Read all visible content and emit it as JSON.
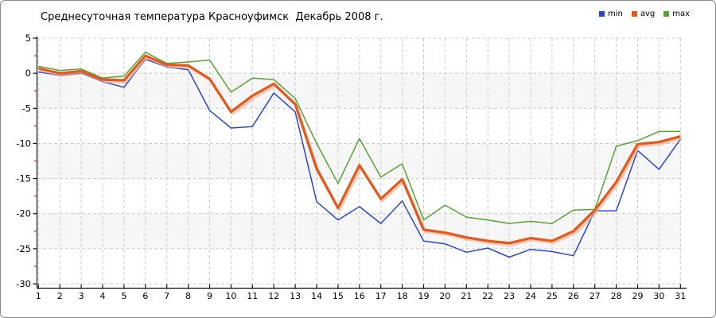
{
  "window": {
    "background": "#ffffff",
    "border_color": "#8a8a8a"
  },
  "title": "Среднесуточная температура Красноуфимск  Декабрь 2008 г.",
  "legend": {
    "position": "top-right",
    "items": [
      {
        "label": "min",
        "color": "#2a46cf"
      },
      {
        "label": "avg",
        "color": "#e05a1e"
      },
      {
        "label": "max",
        "color": "#57a331"
      }
    ]
  },
  "chart_data": {
    "type": "line",
    "title": "Среднесуточная температура Красноуфимск  Декабрь 2008 г.",
    "xlabel": "",
    "ylabel": "",
    "x": [
      1,
      2,
      3,
      4,
      5,
      6,
      7,
      8,
      9,
      10,
      11,
      12,
      13,
      14,
      15,
      16,
      17,
      18,
      19,
      20,
      21,
      22,
      23,
      24,
      25,
      26,
      27,
      28,
      29,
      30,
      31
    ],
    "ylim": [
      -30,
      5
    ],
    "ytick_step": 5,
    "ytick_labels": [
      "5",
      "0",
      "-5",
      "-10",
      "-15",
      "-20",
      "-25",
      "-30"
    ],
    "minor_ytick_step": 2.5,
    "grid": true,
    "grid_style": "dashed",
    "band_rows": [
      [
        0,
        -5
      ],
      [
        -10,
        -15
      ],
      [
        -20,
        -25
      ]
    ],
    "legend_position": "top-right",
    "series": [
      {
        "name": "min",
        "color": "#2a46cf",
        "values": [
          0.2,
          -0.3,
          0.0,
          -1.2,
          -2.0,
          2.0,
          0.9,
          0.5,
          -5.3,
          -7.8,
          -7.6,
          -2.8,
          -5.5,
          -18.3,
          -20.9,
          -19.0,
          -21.4,
          -18.2,
          -23.9,
          -24.3,
          -25.5,
          -24.9,
          -26.2,
          -25.1,
          -25.4,
          -26.0,
          -19.6,
          -19.6,
          -11.0,
          -13.7,
          -9.4
        ]
      },
      {
        "name": "avg",
        "color": "#e05a1e",
        "values": [
          0.7,
          0.0,
          0.3,
          -0.9,
          -1.0,
          2.5,
          1.2,
          1.1,
          -0.8,
          -5.5,
          -3.2,
          -1.5,
          -4.4,
          -13.6,
          -19.2,
          -13.1,
          -17.9,
          -15.1,
          -22.3,
          -22.7,
          -23.4,
          -23.9,
          -24.2,
          -23.5,
          -23.9,
          -22.5,
          -19.5,
          -15.5,
          -10.1,
          -9.8,
          -9.0
        ]
      },
      {
        "name": "max",
        "color": "#57a331",
        "values": [
          1.0,
          0.4,
          0.6,
          -0.7,
          -0.4,
          3.0,
          1.4,
          1.6,
          1.9,
          -2.7,
          -0.7,
          -0.9,
          -3.6,
          -10.0,
          -15.7,
          -9.3,
          -14.8,
          -12.9,
          -20.9,
          -18.8,
          -20.5,
          -20.9,
          -21.4,
          -21.1,
          -21.4,
          -19.5,
          -19.4,
          -10.4,
          -9.6,
          -8.3,
          -8.3
        ]
      }
    ],
    "style": {
      "avg_line_width": 3.2,
      "minmax_line_width": 1.5,
      "avg_shadow_color": "#f3a98b",
      "grid_color": "#cccccc",
      "band_color": "#f6f6f6",
      "axis_color": "#111111",
      "minor_tick_color": "#d03020"
    }
  }
}
